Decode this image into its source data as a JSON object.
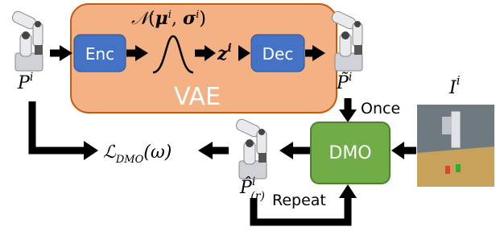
{
  "vae": {
    "label": "VAE",
    "encoder": "Enc",
    "decoder": "Dec",
    "distribution": {
      "symbol": "𝒩",
      "open": "(",
      "mu": "μ",
      "mu_sup": "i",
      "separator": ", ",
      "sigma": "σ",
      "sigma_sup": "i",
      "close": ")"
    },
    "latent": {
      "base": "z",
      "sup": "i"
    }
  },
  "input_trajectory": {
    "base": "P",
    "sup": "i"
  },
  "reconstructed_trajectory": {
    "base": "P̃",
    "sup": "i"
  },
  "image": {
    "base": "I",
    "sup": "i"
  },
  "dmo": {
    "label": "DMO",
    "once": "Once",
    "repeat": "Repeat"
  },
  "rollout_trajectory": {
    "base": "P̂",
    "sup": "i",
    "sub": "(r)"
  },
  "loss": {
    "base": "ℒ",
    "sub": "DMO",
    "arg": "(ω)"
  }
}
